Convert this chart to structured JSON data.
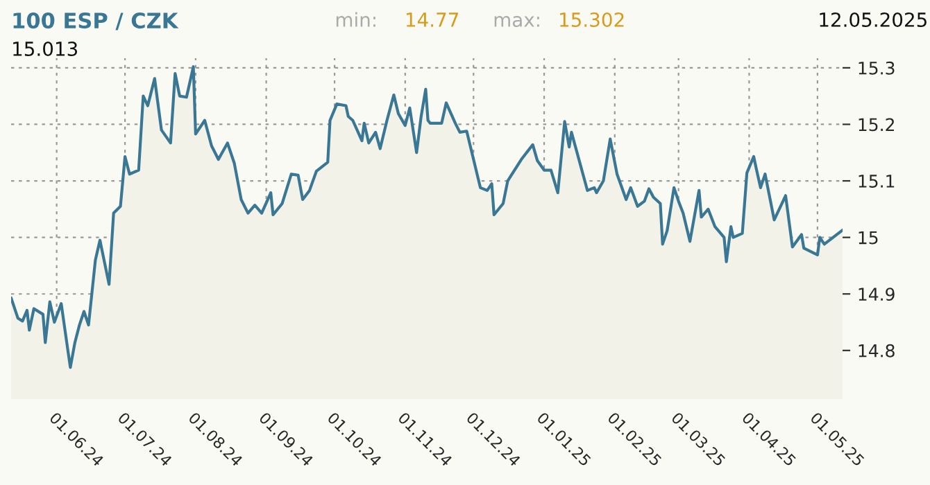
{
  "chart_data": {
    "type": "area",
    "title": "100 ESP / CZK",
    "annotations": [
      "min:",
      "14.77",
      "max:",
      "15.302",
      "12.05.2025",
      "15.013"
    ],
    "x": [
      "2024-05-12",
      "2024-05-15",
      "2024-05-17",
      "2024-05-19",
      "2024-05-20",
      "2024-05-22",
      "2024-05-26",
      "2024-05-27",
      "2024-05-29",
      "2024-05-31",
      "2024-06-03",
      "2024-06-06",
      "2024-06-07",
      "2024-06-09",
      "2024-06-11",
      "2024-06-13",
      "2024-06-15",
      "2024-06-18",
      "2024-06-20",
      "2024-06-24",
      "2024-06-26",
      "2024-06-29",
      "2024-07-01",
      "2024-07-03",
      "2024-07-07",
      "2024-07-09",
      "2024-07-11",
      "2024-07-14",
      "2024-07-17",
      "2024-07-21",
      "2024-07-23",
      "2024-07-25",
      "2024-07-28",
      "2024-07-31",
      "2024-08-01",
      "2024-08-05",
      "2024-08-08",
      "2024-08-11",
      "2024-08-15",
      "2024-08-18",
      "2024-08-21",
      "2024-08-24",
      "2024-08-27",
      "2024-08-30",
      "2024-09-03",
      "2024-09-04",
      "2024-09-08",
      "2024-09-12",
      "2024-09-15",
      "2024-09-17",
      "2024-09-20",
      "2024-09-23",
      "2024-09-28",
      "2024-09-29",
      "2024-10-02",
      "2024-10-06",
      "2024-10-07",
      "2024-10-09",
      "2024-10-13",
      "2024-10-14",
      "2024-10-16",
      "2024-10-19",
      "2024-10-21",
      "2024-10-24",
      "2024-10-27",
      "2024-10-29",
      "2024-11-01",
      "2024-11-03",
      "2024-11-06",
      "2024-11-08",
      "2024-11-10",
      "2024-11-11",
      "2024-11-12",
      "2024-11-17",
      "2024-11-19",
      "2024-11-23",
      "2024-11-25",
      "2024-11-28",
      "2024-12-01",
      "2024-12-04",
      "2024-12-07",
      "2024-12-09",
      "2024-12-10",
      "2024-12-14",
      "2024-12-16",
      "2024-12-22",
      "2024-12-27",
      "2024-12-29",
      "2025-01-01",
      "2025-01-04",
      "2025-01-07",
      "2025-01-10",
      "2025-01-12",
      "2025-01-13",
      "2025-01-20",
      "2025-01-23",
      "2025-01-24",
      "2025-01-27",
      "2025-01-30",
      "2025-02-02",
      "2025-02-06",
      "2025-02-08",
      "2025-02-11",
      "2025-02-14",
      "2025-02-16",
      "2025-02-18",
      "2025-02-21",
      "2025-02-22",
      "2025-02-24",
      "2025-02-27",
      "2025-03-01",
      "2025-03-03",
      "2025-03-06",
      "2025-03-10",
      "2025-03-11",
      "2025-03-14",
      "2025-03-17",
      "2025-03-21",
      "2025-03-22",
      "2025-03-24",
      "2025-03-25",
      "2025-03-29",
      "2025-03-31",
      "2025-04-03",
      "2025-04-04",
      "2025-04-06",
      "2025-04-08",
      "2025-04-12",
      "2025-04-17",
      "2025-04-20",
      "2025-04-24",
      "2025-04-25",
      "2025-05-01",
      "2025-05-02",
      "2025-05-04",
      "2025-05-12"
    ],
    "series": [
      {
        "color": "#3a7795",
        "values": [
          14.893,
          14.857,
          14.852,
          14.871,
          14.836,
          14.874,
          14.864,
          14.814,
          14.886,
          14.85,
          14.883,
          14.798,
          14.77,
          14.814,
          14.845,
          14.869,
          14.845,
          14.96,
          14.995,
          14.917,
          15.043,
          15.055,
          15.143,
          15.112,
          15.119,
          15.25,
          15.233,
          15.281,
          15.19,
          15.167,
          15.29,
          15.25,
          15.248,
          15.302,
          15.183,
          15.207,
          15.162,
          15.138,
          15.167,
          15.131,
          15.067,
          15.043,
          15.057,
          15.043,
          15.079,
          15.04,
          15.06,
          15.112,
          15.11,
          15.067,
          15.083,
          15.117,
          15.133,
          15.207,
          15.236,
          15.233,
          15.214,
          15.207,
          15.171,
          15.202,
          15.167,
          15.186,
          15.157,
          15.207,
          15.252,
          15.219,
          15.198,
          15.229,
          15.15,
          15.214,
          15.262,
          15.207,
          15.202,
          15.202,
          15.238,
          15.202,
          15.186,
          15.188,
          15.138,
          15.088,
          15.083,
          15.095,
          15.04,
          15.06,
          15.1,
          15.138,
          15.164,
          15.136,
          15.119,
          15.119,
          15.079,
          15.205,
          15.16,
          15.186,
          15.083,
          15.088,
          15.079,
          15.1,
          15.174,
          15.112,
          15.067,
          15.088,
          15.055,
          15.064,
          15.086,
          15.071,
          15.06,
          14.988,
          15.012,
          15.088,
          15.064,
          15.043,
          14.993,
          15.083,
          15.036,
          15.05,
          15.019,
          15.0,
          14.957,
          15.019,
          15.0,
          15.007,
          15.114,
          15.143,
          15.124,
          15.088,
          15.112,
          15.031,
          15.074,
          14.983,
          15.005,
          14.981,
          14.969,
          15.0,
          14.988,
          15.013
        ]
      }
    ],
    "xlim": [
      "2024-05-12",
      "2025-05-12"
    ],
    "xticks": [
      {
        "value": "2024-06-01",
        "label": "01.06.24"
      },
      {
        "value": "2024-07-01",
        "label": "01.07.24"
      },
      {
        "value": "2024-08-01",
        "label": "01.08.24"
      },
      {
        "value": "2024-09-01",
        "label": "01.09.24"
      },
      {
        "value": "2024-10-01",
        "label": "01.10.24"
      },
      {
        "value": "2024-11-01",
        "label": "01.11.24"
      },
      {
        "value": "2024-12-01",
        "label": "01.12.24"
      },
      {
        "value": "2025-01-01",
        "label": "01.01.25"
      },
      {
        "value": "2025-02-01",
        "label": "01.02.25"
      },
      {
        "value": "2025-03-01",
        "label": "01.03.25"
      },
      {
        "value": "2025-04-01",
        "label": "01.04.25"
      },
      {
        "value": "2025-05-01",
        "label": "01.05.25"
      }
    ],
    "ylim": [
      14.714,
      15.317
    ],
    "yticks": [
      14.8,
      14.9,
      15,
      15.1,
      15.2,
      15.3
    ],
    "grid": true,
    "legend": false
  }
}
